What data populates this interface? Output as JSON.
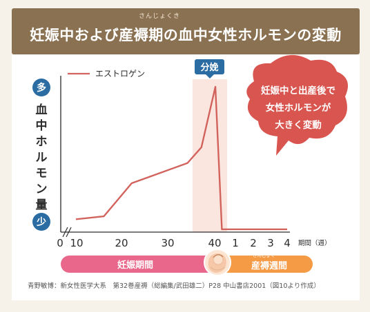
{
  "header": {
    "title": "妊娠中および産褥期の血中女性ホルモンの変動",
    "ruby": "さんじょくき"
  },
  "chart_data": {
    "type": "line",
    "series": [
      {
        "name": "エストロゲン",
        "color": "#d2625c",
        "points": [
          {
            "x": "10",
            "y": 8
          },
          {
            "x": "16",
            "y": 10
          },
          {
            "x": "22",
            "y": 33
          },
          {
            "x": "34",
            "y": 47
          },
          {
            "x": "37",
            "y": 58
          },
          {
            "x": "40",
            "y": 100
          },
          {
            "x": "産後0.1",
            "y": 1
          },
          {
            "x": "産後4",
            "y": 1
          }
        ]
      }
    ],
    "x_ticks_pregnancy": [
      "0",
      "10",
      "20",
      "30",
      "40"
    ],
    "x_ticks_postpartum": [
      "1",
      "2",
      "3",
      "4"
    ],
    "xlabel": "期間（週）",
    "ylabel": "血中ホルモン量",
    "y_top_label": "多",
    "y_bottom_label": "少",
    "ylim": [
      0,
      100
    ],
    "highlight": {
      "label": "分娩",
      "color": "#fbe6df"
    }
  },
  "callout": {
    "lines": [
      "妊娠中と出産後で",
      "女性ホルモンが",
      "大きく変動"
    ],
    "color": "#d9554f"
  },
  "periods": {
    "pregnancy": {
      "label": "妊娠期間",
      "color": "#e8678a"
    },
    "postpartum": {
      "label": "産褥週間",
      "ruby": "さんじょく",
      "color": "#f59a45"
    }
  },
  "footer": {
    "source": "青野敏博：新女性医学大系　第32巻産褥（総編集/武田雄二）P28 中山書店2001（図10より作成）"
  }
}
